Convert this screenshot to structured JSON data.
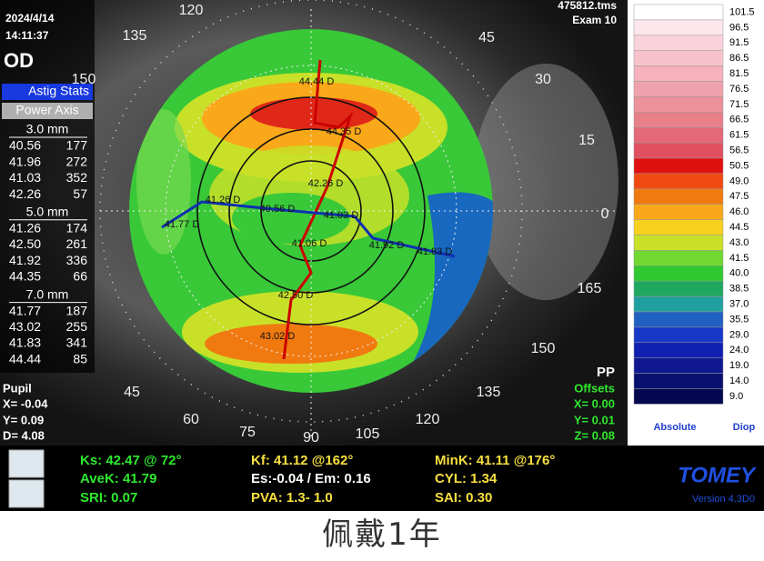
{
  "header": {
    "date": "2024/4/14",
    "time": "14:11:37",
    "eye": "OD",
    "file": "475812.tms",
    "exam": "Exam 10"
  },
  "astig_stats": {
    "title": "Astig Stats",
    "columns": "Power  Axis",
    "zones": [
      {
        "label": "3.0 mm",
        "rows": [
          [
            "40.56",
            "177"
          ],
          [
            "41.96",
            "272"
          ],
          [
            "41.03",
            "352"
          ],
          [
            "42.26",
            "57"
          ]
        ]
      },
      {
        "label": "5.0 mm",
        "rows": [
          [
            "41.26",
            "174"
          ],
          [
            "42.50",
            "261"
          ],
          [
            "41.92",
            "336"
          ],
          [
            "44.35",
            "66"
          ]
        ]
      },
      {
        "label": "7.0 mm",
        "rows": [
          [
            "41.77",
            "187"
          ],
          [
            "43.02",
            "255"
          ],
          [
            "41.83",
            "341"
          ],
          [
            "44.44",
            "85"
          ]
        ]
      }
    ]
  },
  "pupil": {
    "title": "Pupil",
    "x": "X= -0.04",
    "y": "Y=  0.09",
    "d": "D=  4.08"
  },
  "offsets": {
    "pp": "PP",
    "title": "Offsets",
    "x": "X=  0.00",
    "y": "Y=  0.01",
    "z": "Z=  0.08"
  },
  "angles": [
    "120",
    "135",
    "150",
    "45",
    "30",
    "15",
    "0",
    "165",
    "150",
    "135",
    "120",
    "105",
    "90",
    "75",
    "60",
    "45"
  ],
  "map_labels": [
    "44.44 D",
    "44.35 D",
    "42.26 D",
    "41.26 D",
    "40.56 D",
    "41.03 D",
    "41.77 D",
    "41.06 D",
    "41.92 D",
    "41.83 D",
    "42.50 D",
    "43.02 D"
  ],
  "color_scale": {
    "values": [
      "101.5",
      "96.5",
      "91.5",
      "86.5",
      "81.5",
      "76.5",
      "71.5",
      "66.5",
      "61.5",
      "56.5",
      "50.5",
      "49.0",
      "47.5",
      "46.0",
      "44.5",
      "43.0",
      "41.5",
      "40.0",
      "38.5",
      "37.0",
      "35.5",
      "29.0",
      "24.0",
      "19.0",
      "14.0",
      "9.0"
    ],
    "colors": [
      "#ffffff",
      "#fde6ec",
      "#fad2dc",
      "#f8c2cc",
      "#f5b2bc",
      "#f0a2ac",
      "#ec909a",
      "#e8808a",
      "#e46878",
      "#e05060",
      "#e01010",
      "#f04a10",
      "#f07a10",
      "#f8a818",
      "#f8d020",
      "#c8e028",
      "#70d830",
      "#30c830",
      "#20a860",
      "#20a0a0",
      "#2060c0",
      "#1838c8",
      "#1020b0",
      "#101890",
      "#081070",
      "#040850"
    ],
    "mode": "Absolute",
    "unit": "Diop"
  },
  "stats": {
    "ks": "Ks: 42.47 @ 72°",
    "kf": "Kf: 41.12 @162°",
    "mink": "MinK: 41.11 @176°",
    "avek": "AveK: 41.79",
    "es": "Es:-0.04 / Em: 0.16",
    "cyl": "CYL:  1.34",
    "sri": "SRI: 0.07",
    "pva": "PVA:  1.3-  1.0",
    "sai": "SAI: 0.30"
  },
  "brand": {
    "name": "TOMEY",
    "version": "Version 4.3D0"
  },
  "caption": "佩戴1年"
}
